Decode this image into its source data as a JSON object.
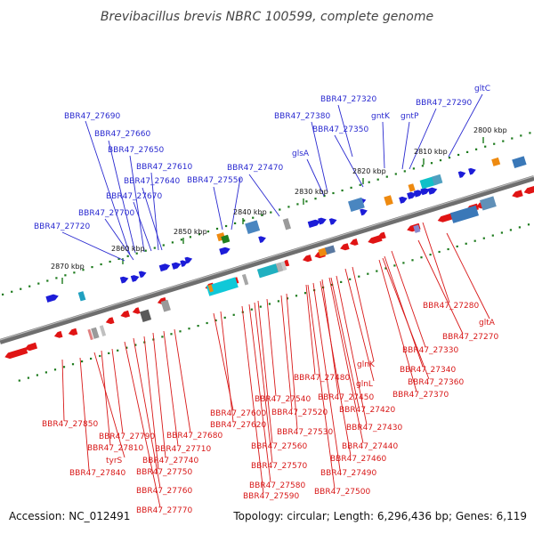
{
  "title": "Brevibacillus brevis NBRC 100599, complete genome",
  "accession": "Accession: NC_012491",
  "summary": "Topology: circular; Length: 6,296,436 bp; Genes: 6,119",
  "colors": {
    "forward_label": "#2a2ad0",
    "reverse_label": "#d81818",
    "forward_gene": "#1c1cd8",
    "reverse_gene": "#e01414",
    "tick": "#1c7a1c",
    "axis": "#6e6e6e"
  },
  "scale_labels": [
    "2800 kbp",
    "2810 kbp",
    "2820 kbp",
    "2830 kbp",
    "2840 kbp",
    "2850 kbp",
    "2860 kbp",
    "2870 kbp"
  ],
  "forward_labels": [
    "BBR47_27690",
    "BBR47_27660",
    "BBR47_27650",
    "BBR47_27610",
    "BBR47_27640",
    "BBR47_27670",
    "BBR47_27700",
    "BBR47_27720",
    "BBR47_27550",
    "BBR47_27470",
    "glsA",
    "BBR47_27380",
    "BBR47_27350",
    "BBR47_27320",
    "gntK",
    "gntP",
    "BBR47_27290",
    "gltC"
  ],
  "reverse_labels": [
    "BBR47_27280",
    "gltA",
    "BBR47_27270",
    "BBR47_27330",
    "BBR47_27340",
    "BBR47_27360",
    "BBR47_27370",
    "glnK",
    "glnL",
    "BBR47_27480",
    "BBR47_27450",
    "BBR47_27420",
    "BBR47_27430",
    "BBR47_27440",
    "BBR47_27460",
    "BBR47_27490",
    "BBR47_27500",
    "BBR47_27540",
    "BBR47_27520",
    "BBR47_27530",
    "BBR47_27560",
    "BBR47_27570",
    "BBR47_27580",
    "BBR47_27590",
    "BBR47_27600",
    "BBR47_27620",
    "BBR47_27680",
    "BBR47_27710",
    "BBR47_27740",
    "BBR47_27750",
    "BBR47_27760",
    "BBR47_27770",
    "BBR47_27790",
    "BBR47_27810",
    "BBR47_27840",
    "BBR47_27850",
    "tyrS"
  ]
}
